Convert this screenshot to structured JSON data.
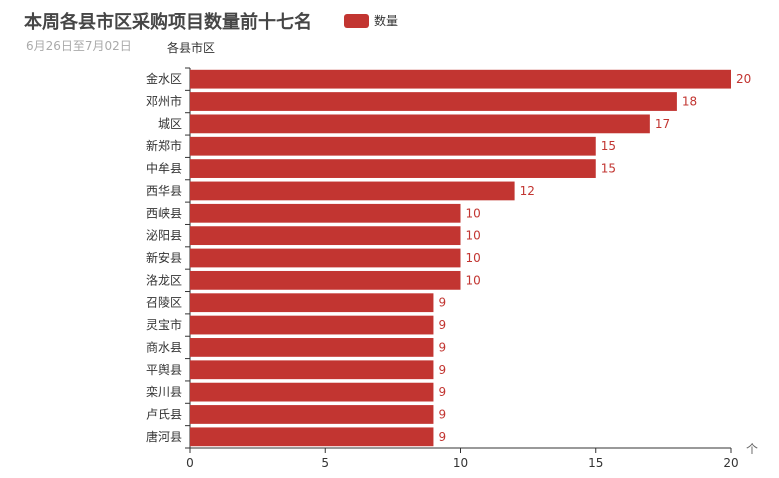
{
  "chart_data": {
    "type": "bar",
    "orientation": "horizontal",
    "title": "本周各县市区采购项目数量前十七名",
    "subtitle": "6月26日至7月02日",
    "ylabel": "各县市区",
    "xlabel": "",
    "categories": [
      "金水区",
      "邓州市",
      "城区",
      "新郑市",
      "中牟县",
      "西华县",
      "西峡县",
      "泌阳县",
      "新安县",
      "洛龙区",
      "召陵区",
      "灵宝市",
      "商水县",
      "平舆县",
      "栾川县",
      "卢氏县",
      "唐河县"
    ],
    "series": [
      {
        "name": "数量",
        "values": [
          20,
          18,
          17,
          15,
          15,
          12,
          10,
          10,
          10,
          10,
          9,
          9,
          9,
          9,
          9,
          9,
          9
        ]
      }
    ],
    "xlim": [
      0,
      20
    ],
    "xticks": [
      0,
      5,
      10,
      15,
      20
    ],
    "bar_color": "#c23531",
    "legend_position": "top",
    "grid": false,
    "data_labels": true
  },
  "toolbox": {
    "icon": "arrow-up-icon",
    "glyph": "个"
  }
}
